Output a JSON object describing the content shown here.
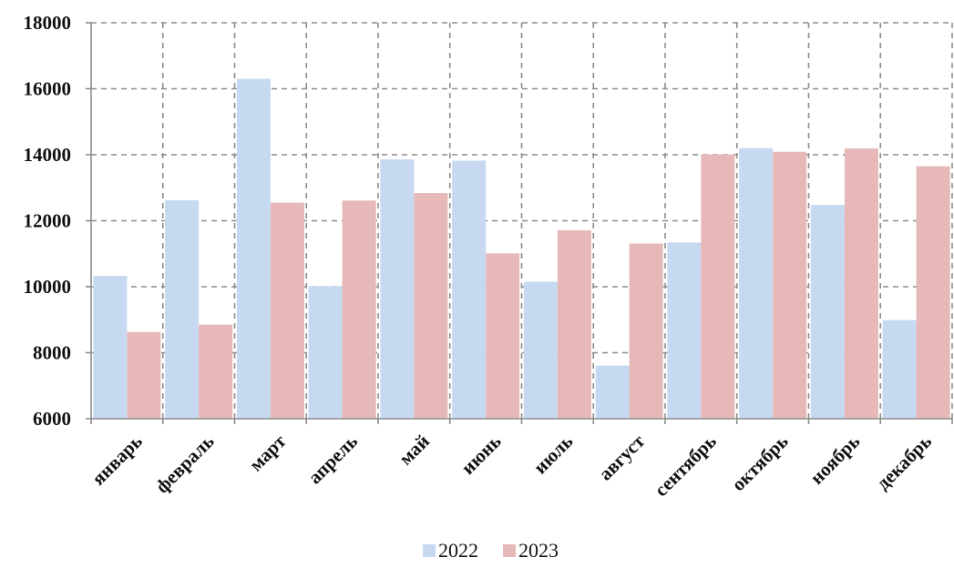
{
  "chart_data": {
    "type": "bar",
    "categories": [
      "январь",
      "февраль",
      "март",
      "апрель",
      "май",
      "июнь",
      "июль",
      "август",
      "сентябрь",
      "октябрь",
      "ноябрь",
      "декабрь"
    ],
    "series": [
      {
        "name": "2022",
        "color": "#c6d9f1",
        "values": [
          10330,
          12620,
          16300,
          10020,
          13860,
          13820,
          10150,
          7610,
          11340,
          14200,
          12480,
          8990
        ]
      },
      {
        "name": "2023",
        "color": "#e6b9b8",
        "values": [
          8630,
          8850,
          12550,
          12610,
          12840,
          11010,
          11710,
          11310,
          14010,
          14090,
          14190,
          13650
        ]
      }
    ],
    "ylim": [
      6000,
      18000
    ],
    "yticks": [
      6000,
      8000,
      10000,
      12000,
      14000,
      16000,
      18000
    ],
    "grid": true,
    "legend_position": "bottom",
    "title": "",
    "xlabel": "",
    "ylabel": ""
  }
}
